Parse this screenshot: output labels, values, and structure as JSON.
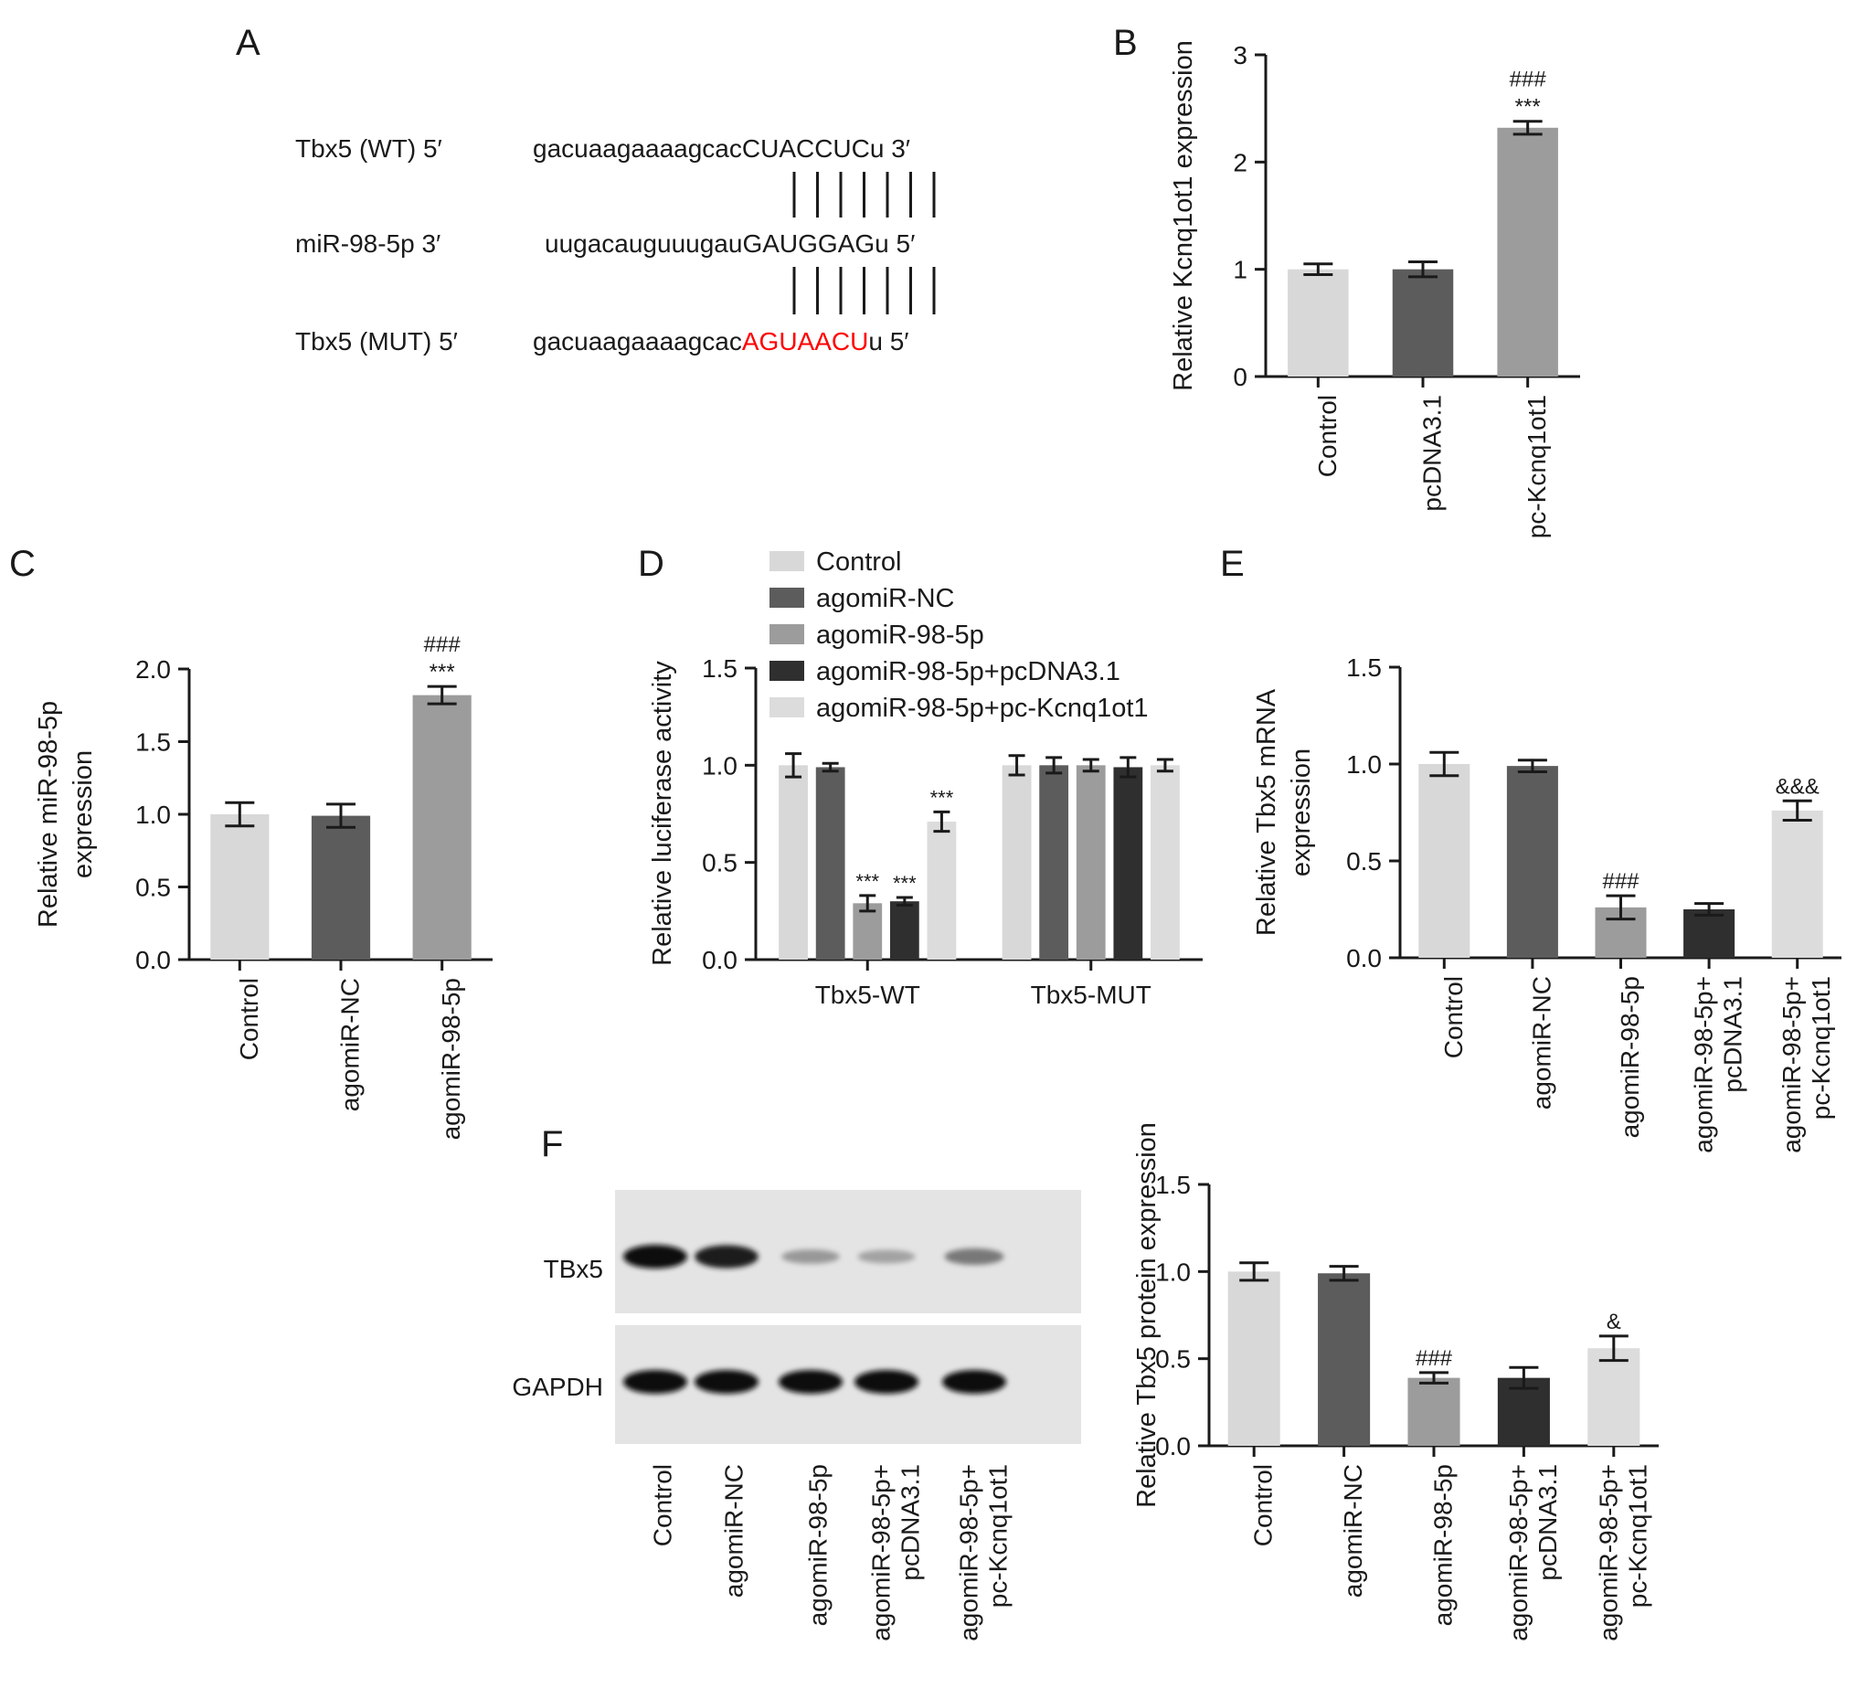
{
  "colors": {
    "light_gray": "#d8d8d8",
    "dark_gray": "#5c5c5c",
    "mid_gray": "#9c9c9c",
    "black_gray": "#2f2f2f",
    "lighter_gray": "#dcdcdc",
    "mutation_red": "#ff0000",
    "text": "#1a1a1a"
  },
  "panel_a": {
    "letter": "A",
    "rows": [
      {
        "label": "Tbx5 (WT) 5′",
        "seq_lower": "gacuaagaaaagcac",
        "seq_upper": "CUACCUC",
        "seq_tail": "u 3′",
        "highlight": false
      },
      {
        "label": "miR-98-5p 3′",
        "seq_lower": "uugacauguuugau",
        "seq_upper": "GAUGGAG",
        "seq_tail": "u 5′",
        "highlight": false
      },
      {
        "label": "Tbx5 (MUT) 5′",
        "seq_lower": "gacuaagaaaagcac",
        "seq_upper": "AGUAACU",
        "seq_tail": "u 5′",
        "highlight": true
      }
    ]
  },
  "panel_f": {
    "letter": "F",
    "blot_labels": [
      "TBx5",
      "GAPDH"
    ],
    "lane_labels": [
      "Control",
      "agomiR-NC",
      "agomiR-98-5p",
      "agomiR-98-5p+|pcDNA3.1",
      "agomiR-98-5p+|pc-Kcnq1ot1"
    ],
    "tbx5_intensity": [
      1.0,
      0.95,
      0.35,
      0.3,
      0.5
    ],
    "gapdh_intensity": [
      1.0,
      1.0,
      1.0,
      1.0,
      1.0
    ]
  },
  "chart_data": [
    {
      "id": "B",
      "letter": "B",
      "type": "bar",
      "ylabel": "Relative Kcnq1ot1 expression",
      "ylim": [
        0,
        3
      ],
      "yticks": [
        "0",
        "1",
        "2",
        "3"
      ],
      "categories": [
        "Control",
        "pcDNA3.1",
        "pc-Kcnq1ot1"
      ],
      "values": [
        1.0,
        1.0,
        2.32
      ],
      "errors": [
        0.05,
        0.07,
        0.06
      ],
      "colors": [
        "#d8d8d8",
        "#5c5c5c",
        "#9c9c9c"
      ],
      "annotations": [
        {
          "index": 2,
          "lines": [
            "###",
            "***"
          ]
        }
      ]
    },
    {
      "id": "C",
      "letter": "C",
      "type": "bar",
      "ylabel": "Relative miR-98-5p|expression",
      "ylim": [
        0,
        2.0
      ],
      "yticks": [
        "0.0",
        "0.5",
        "1.0",
        "1.5",
        "2.0"
      ],
      "categories": [
        "Control",
        "agomiR-NC",
        "agomiR-98-5p"
      ],
      "values": [
        1.0,
        0.99,
        1.82
      ],
      "errors": [
        0.08,
        0.08,
        0.06
      ],
      "colors": [
        "#d8d8d8",
        "#5c5c5c",
        "#9c9c9c"
      ],
      "annotations": [
        {
          "index": 2,
          "lines": [
            "###",
            "***"
          ]
        }
      ]
    },
    {
      "id": "D",
      "letter": "D",
      "type": "bar",
      "ylabel": "Relative luciferase activity",
      "ylim": [
        0,
        1.5
      ],
      "yticks": [
        "0.0",
        "0.5",
        "1.0",
        "1.5"
      ],
      "categories": [
        "Tbx5-WT",
        "Tbx5-MUT"
      ],
      "legend_position": "top",
      "series": [
        {
          "name": "Control",
          "color": "#d8d8d8",
          "values": [
            1.0,
            1.0
          ],
          "errors": [
            0.06,
            0.05
          ]
        },
        {
          "name": "agomiR-NC",
          "color": "#5c5c5c",
          "values": [
            0.99,
            1.0
          ],
          "errors": [
            0.02,
            0.04
          ]
        },
        {
          "name": "agomiR-98-5p",
          "color": "#9c9c9c",
          "values": [
            0.29,
            1.0
          ],
          "errors": [
            0.04,
            0.03
          ]
        },
        {
          "name": "agomiR-98-5p+pcDNA3.1",
          "color": "#2f2f2f",
          "values": [
            0.3,
            0.99
          ],
          "errors": [
            0.02,
            0.05
          ]
        },
        {
          "name": "agomiR-98-5p+pc-Kcnq1ot1",
          "color": "#dcdcdc",
          "values": [
            0.71,
            1.0
          ],
          "errors": [
            0.05,
            0.03
          ]
        }
      ],
      "annotations": [
        {
          "category": 0,
          "series": 2,
          "lines": [
            "***"
          ]
        },
        {
          "category": 0,
          "series": 3,
          "lines": [
            "***"
          ]
        },
        {
          "category": 0,
          "series": 4,
          "lines": [
            "***"
          ]
        }
      ]
    },
    {
      "id": "E",
      "letter": "E",
      "type": "bar",
      "ylabel": "Relative Tbx5 mRNA|expression",
      "ylim": [
        0,
        1.5
      ],
      "yticks": [
        "0.0",
        "0.5",
        "1.0",
        "1.5"
      ],
      "categories": [
        "Control",
        "agomiR-NC",
        "agomiR-98-5p",
        "agomiR-98-5p+|pcDNA3.1",
        "agomiR-98-5p+|pc-Kcnq1ot1"
      ],
      "values": [
        1.0,
        0.99,
        0.26,
        0.25,
        0.76
      ],
      "errors": [
        0.06,
        0.03,
        0.06,
        0.03,
        0.05
      ],
      "colors": [
        "#d8d8d8",
        "#5c5c5c",
        "#9c9c9c",
        "#2f2f2f",
        "#dcdcdc"
      ],
      "annotations": [
        {
          "index": 2,
          "lines": [
            "###"
          ]
        },
        {
          "index": 4,
          "lines": [
            "&&&"
          ]
        }
      ]
    },
    {
      "id": "F",
      "type": "bar",
      "ylabel": "Relative Tbx5 protein expression",
      "ylim": [
        0,
        1.5
      ],
      "yticks": [
        "0.0",
        "0.5",
        "1.0",
        "1.5"
      ],
      "categories": [
        "Control",
        "agomiR-NC",
        "agomiR-98-5p",
        "agomiR-98-5p+|pcDNA3.1",
        "agomiR-98-5p+|pc-Kcnq1ot1"
      ],
      "values": [
        1.0,
        0.99,
        0.39,
        0.39,
        0.56
      ],
      "errors": [
        0.05,
        0.04,
        0.03,
        0.06,
        0.07
      ],
      "colors": [
        "#d8d8d8",
        "#5c5c5c",
        "#9c9c9c",
        "#2f2f2f",
        "#dcdcdc"
      ],
      "annotations": [
        {
          "index": 2,
          "lines": [
            "###"
          ]
        },
        {
          "index": 4,
          "lines": [
            "&"
          ]
        }
      ]
    }
  ]
}
